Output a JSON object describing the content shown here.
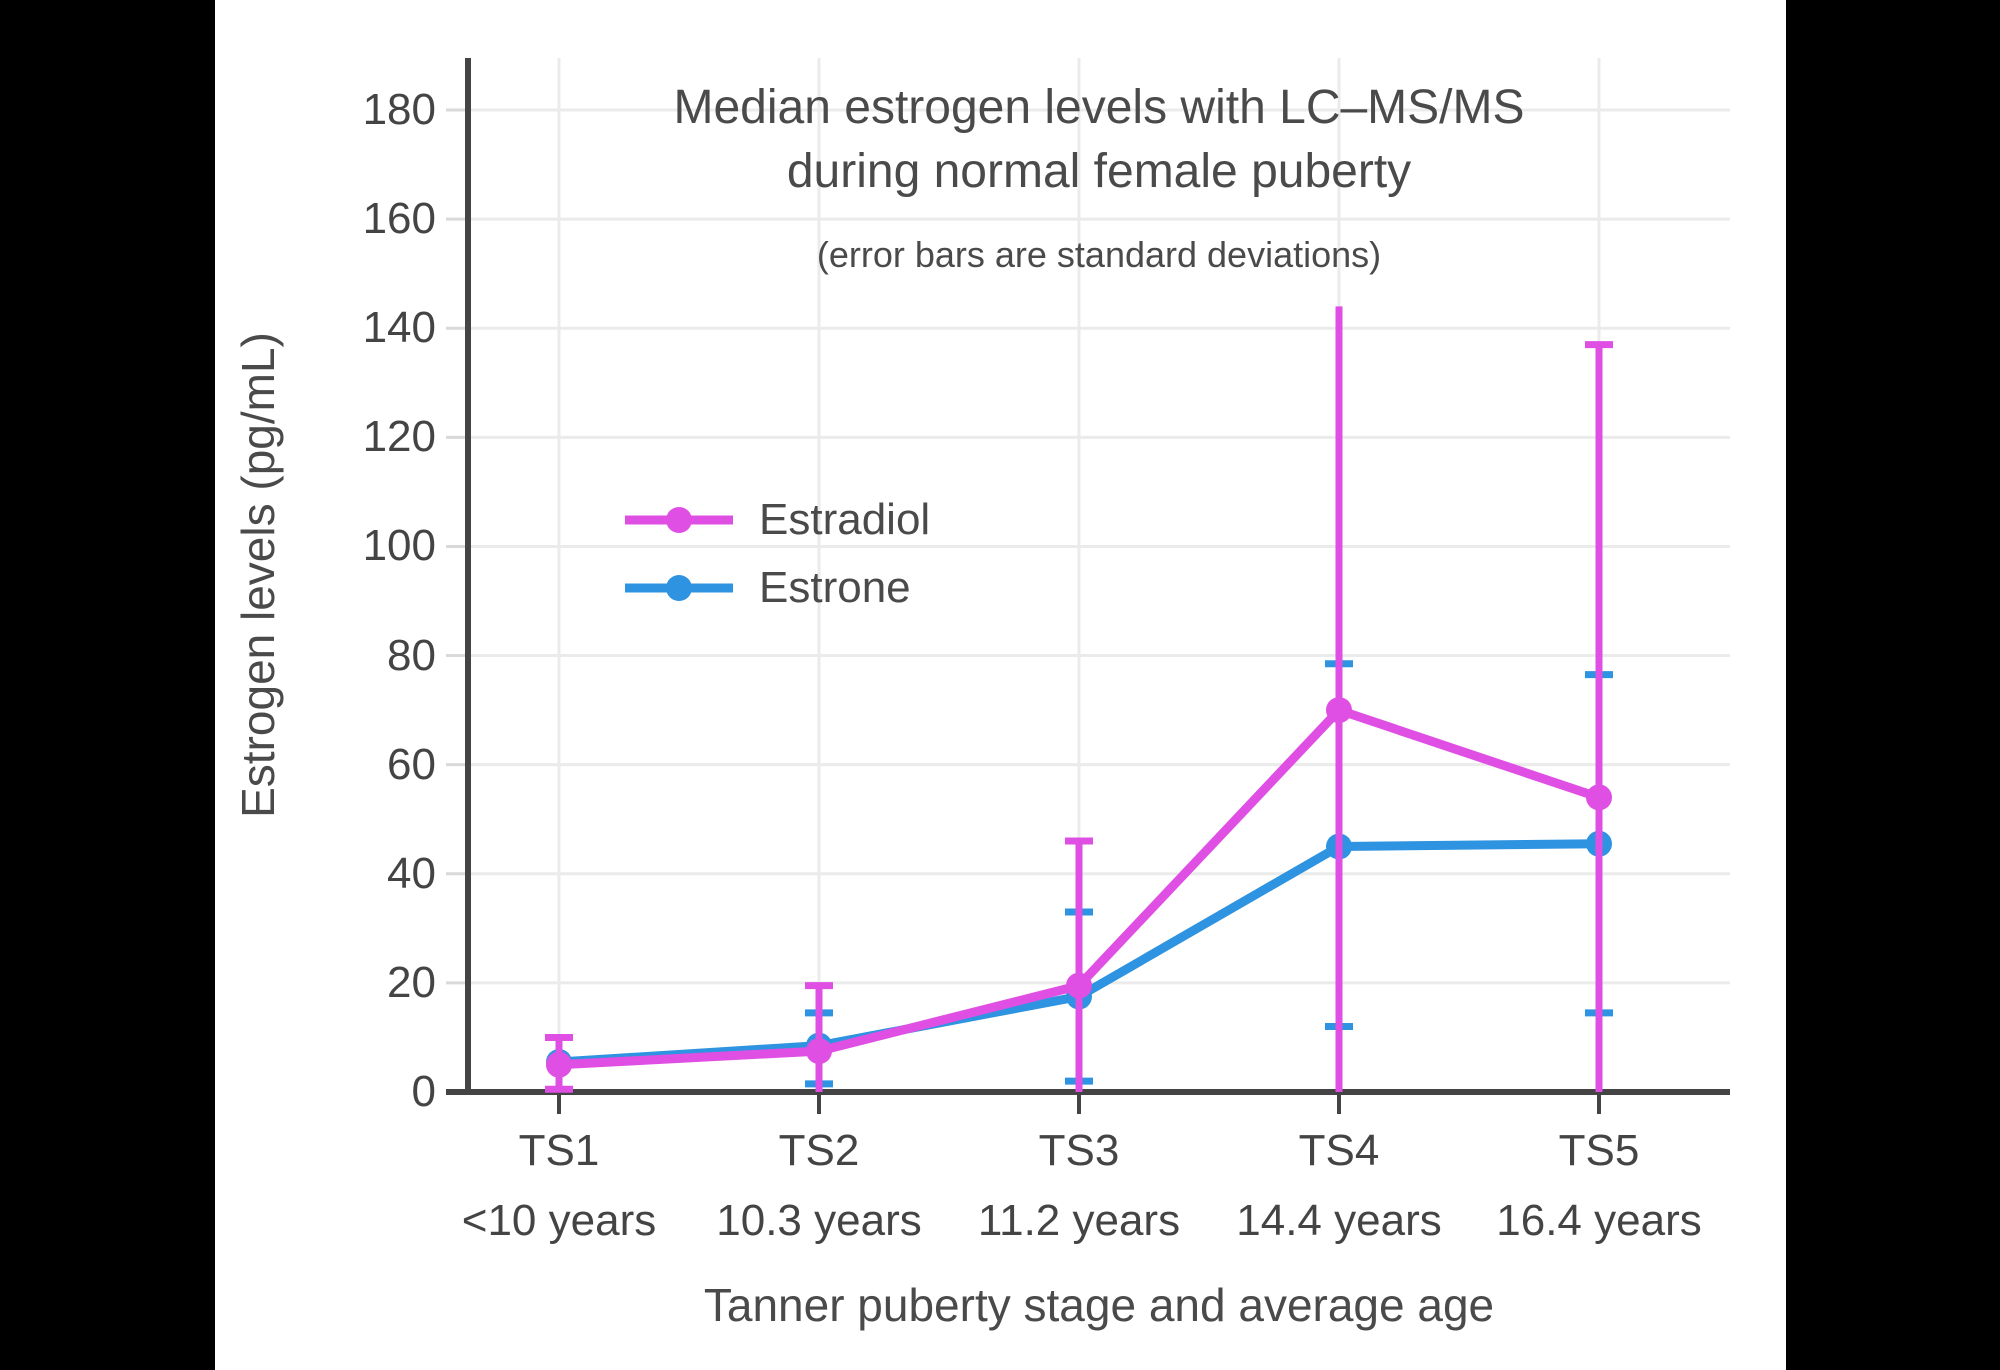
{
  "chart": {
    "title_line1": "Median estrogen levels with LC–MS/MS",
    "title_line2": "during normal female puberty",
    "subtitle": "(error bars are standard deviations)",
    "x_axis_title": "Tanner puberty stage and average age",
    "y_axis_title": "Estrogen levels (pg/mL)",
    "colors": {
      "estradiol": "#E04FE4",
      "estrone": "#2E93E0",
      "axis": "#444444",
      "text": "#4a4a4a",
      "gridline": "#ebebeb",
      "minor_tick": "#d9d9d9",
      "background": "#ffffff",
      "letterbox": "#000000"
    }
  },
  "chart_data": {
    "type": "line",
    "title": "Median estrogen levels with LC–MS/MS during normal female puberty",
    "subtitle": "(error bars are standard deviations)",
    "xlabel": "Tanner puberty stage and average age",
    "ylabel": "Estrogen levels (pg/mL)",
    "categories": [
      "TS1",
      "TS2",
      "TS3",
      "TS4",
      "TS5"
    ],
    "category_ages": [
      "<10 years",
      "10.3 years",
      "11.2 years",
      "14.4 years",
      "16.4 years"
    ],
    "y_ticks": [
      0,
      20,
      40,
      60,
      80,
      100,
      120,
      140,
      160,
      180
    ],
    "ylim": [
      0,
      190
    ],
    "grid": true,
    "legend_position": "inside-upper-left",
    "series": [
      {
        "name": "Estrone",
        "color": "#2E93E0",
        "values": [
          5.5,
          8.5,
          17.5,
          45,
          45.5
        ],
        "error_top": [
          null,
          14.5,
          33,
          78.5,
          76.5
        ],
        "error_bottom": [
          null,
          1.5,
          2,
          12,
          14.5
        ],
        "top_caps": [
          false,
          true,
          true,
          true,
          true
        ],
        "bottom_caps": [
          false,
          true,
          true,
          true,
          true
        ]
      },
      {
        "name": "Estradiol",
        "color": "#E04FE4",
        "values": [
          5,
          7.5,
          19.5,
          70,
          54
        ],
        "error_top": [
          10,
          19.5,
          46,
          144,
          137
        ],
        "error_bottom": [
          0.5,
          0,
          0,
          0,
          0
        ],
        "top_caps": [
          true,
          true,
          true,
          false,
          true
        ],
        "bottom_caps": [
          true,
          false,
          false,
          false,
          false
        ]
      }
    ],
    "legend_order": [
      "Estradiol",
      "Estrone"
    ]
  }
}
